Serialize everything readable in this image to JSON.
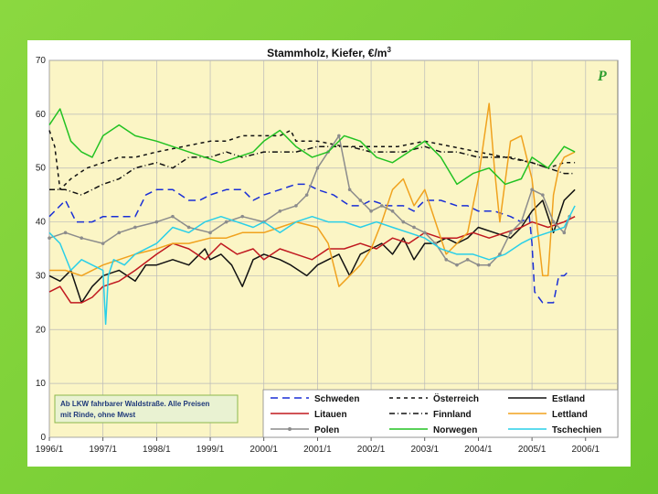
{
  "chart_data": {
    "type": "line",
    "title": "Stammholz, Kiefer, €/m",
    "title_superscript": "3",
    "xlabel": "",
    "ylabel": "",
    "ylim": [
      0,
      70
    ],
    "yticks": [
      0,
      10,
      20,
      30,
      40,
      50,
      60,
      70
    ],
    "x_tick_labels": [
      "1996/1",
      "1997/1",
      "1998/1",
      "1999/1",
      "2000/1",
      "2001/1",
      "2002/1",
      "2003/1",
      "2004/1",
      "2005/1",
      "2006/1"
    ],
    "xlim": [
      1996,
      2006.6
    ],
    "grid": true,
    "legend_position": "bottom-right",
    "note": [
      "Ab LKW fahrbarer Waldstraße. Alle Preisen",
      "mit Rinde, ohne Mwst"
    ],
    "logo": "P",
    "series": [
      {
        "name": "Schweden",
        "color": "#1a2fd6",
        "dash": "8,5",
        "x": [
          1996.0,
          1996.3,
          1996.5,
          1996.8,
          1997.0,
          1997.3,
          1997.6,
          1997.8,
          1998.0,
          1998.3,
          1998.6,
          1998.8,
          1999.0,
          1999.3,
          1999.6,
          1999.8,
          2000.0,
          2000.3,
          2000.6,
          2000.8,
          2001.0,
          2001.3,
          2001.6,
          2001.8,
          2002.0,
          2002.3,
          2002.6,
          2002.8,
          2003.0,
          2003.3,
          2003.6,
          2003.8,
          2004.0,
          2004.3,
          2004.6,
          2004.8,
          2004.95,
          2005.0,
          2005.05,
          2005.2,
          2005.4,
          2005.5,
          2005.6,
          2005.7
        ],
        "y": [
          41,
          44,
          40,
          40,
          41,
          41,
          41,
          45,
          46,
          46,
          44,
          44,
          45,
          46,
          46,
          44,
          45,
          46,
          47,
          47,
          46,
          45,
          43,
          43,
          44,
          43,
          43,
          42,
          44,
          44,
          43,
          43,
          42,
          42,
          41,
          40,
          41,
          36,
          27,
          25,
          25,
          30,
          30,
          31
        ]
      },
      {
        "name": "Österreich",
        "color": "#111111",
        "dash": "4,4",
        "x": [
          1996.0,
          1996.1,
          1996.2,
          1996.4,
          1996.7,
          1997.0,
          1997.3,
          1997.6,
          1998.0,
          1998.5,
          1999.0,
          1999.3,
          1999.6,
          2000.0,
          2000.3,
          2000.5,
          2000.6,
          2001.0,
          2001.5,
          2002.0,
          2002.5,
          2003.0,
          2003.5,
          2004.0,
          2004.5,
          2005.0,
          2005.3,
          2005.6,
          2005.8
        ],
        "y": [
          57,
          54,
          46,
          48,
          50,
          51,
          52,
          52,
          53,
          54,
          55,
          55,
          56,
          56,
          56,
          57,
          55,
          55,
          54,
          54,
          54,
          55,
          54,
          53,
          52,
          51,
          50,
          51,
          51
        ]
      },
      {
        "name": "Estland",
        "color": "#111111",
        "dash": "",
        "x": [
          1996.0,
          1996.2,
          1996.4,
          1996.6,
          1996.8,
          1997.0,
          1997.3,
          1997.6,
          1997.8,
          1998.0,
          1998.3,
          1998.6,
          1998.9,
          1999.0,
          1999.2,
          1999.4,
          1999.6,
          1999.8,
          2000.0,
          2000.3,
          2000.5,
          2000.8,
          2001.0,
          2001.2,
          2001.4,
          2001.6,
          2001.8,
          2002.0,
          2002.2,
          2002.4,
          2002.6,
          2002.8,
          2003.0,
          2003.2,
          2003.4,
          2003.6,
          2003.8,
          2004.0,
          2004.3,
          2004.6,
          2004.8,
          2005.0,
          2005.2,
          2005.4,
          2005.6,
          2005.8
        ],
        "y": [
          30,
          29,
          31,
          25,
          28,
          30,
          31,
          29,
          32,
          32,
          33,
          32,
          35,
          33,
          34,
          32,
          28,
          33,
          34,
          33,
          32,
          30,
          32,
          33,
          34,
          30,
          34,
          35,
          36,
          34,
          37,
          33,
          36,
          36,
          37,
          36,
          37,
          39,
          38,
          37,
          39,
          42,
          44,
          38,
          44,
          46
        ]
      },
      {
        "name": "Litauen",
        "color": "#c0181f",
        "dash": "",
        "x": [
          1996.0,
          1996.2,
          1996.4,
          1996.6,
          1996.8,
          1997.0,
          1997.3,
          1997.6,
          1998.0,
          1998.3,
          1998.6,
          1998.9,
          1999.2,
          1999.5,
          1999.8,
          2000.0,
          2000.3,
          2000.6,
          2000.9,
          2001.2,
          2001.5,
          2001.8,
          2002.1,
          2002.4,
          2002.7,
          2003.0,
          2003.3,
          2003.6,
          2003.9,
          2004.2,
          2004.5,
          2004.8,
          2005.0,
          2005.3,
          2005.6,
          2005.8
        ],
        "y": [
          27,
          28,
          25,
          25,
          26,
          28,
          29,
          31,
          34,
          36,
          35,
          33,
          36,
          34,
          35,
          33,
          35,
          34,
          33,
          35,
          35,
          36,
          35,
          37,
          36,
          38,
          37,
          37,
          38,
          37,
          38,
          39,
          40,
          39,
          40,
          41
        ]
      },
      {
        "name": "Finnland",
        "color": "#111111",
        "dash": "6,3,1,3",
        "x": [
          1996.0,
          1996.3,
          1996.6,
          1997.0,
          1997.3,
          1997.6,
          1998.0,
          1998.3,
          1998.6,
          1999.0,
          1999.3,
          1999.6,
          2000.0,
          2000.3,
          2000.6,
          2001.0,
          2001.3,
          2001.6,
          2002.0,
          2002.3,
          2002.6,
          2003.0,
          2003.3,
          2003.6,
          2004.0,
          2004.3,
          2004.6,
          2005.0,
          2005.3,
          2005.6,
          2005.8
        ],
        "y": [
          46,
          46,
          45,
          47,
          48,
          50,
          51,
          50,
          52,
          52,
          53,
          52,
          53,
          53,
          53,
          54,
          54,
          54,
          53,
          53,
          53,
          54,
          53,
          53,
          52,
          52,
          52,
          51,
          50,
          49,
          49
        ]
      },
      {
        "name": "Lettland",
        "color": "#f0a21e",
        "dash": "",
        "x": [
          1996.0,
          1996.3,
          1996.6,
          1997.0,
          1997.3,
          1997.6,
          1998.0,
          1998.3,
          1998.6,
          1999.0,
          1999.3,
          1999.6,
          2000.0,
          2000.3,
          2000.6,
          2001.0,
          2001.2,
          2001.4,
          2001.6,
          2001.8,
          2002.0,
          2002.2,
          2002.4,
          2002.6,
          2002.8,
          2003.0,
          2003.2,
          2003.4,
          2003.6,
          2003.8,
          2004.0,
          2004.1,
          2004.2,
          2004.3,
          2004.4,
          2004.6,
          2004.8,
          2005.0,
          2005.2,
          2005.3,
          2005.4,
          2005.5,
          2005.6,
          2005.8
        ],
        "y": [
          31,
          31,
          30,
          32,
          33,
          34,
          35,
          36,
          36,
          37,
          37,
          38,
          38,
          39,
          40,
          39,
          36,
          28,
          30,
          32,
          35,
          40,
          46,
          48,
          43,
          46,
          40,
          34,
          36,
          38,
          48,
          55,
          62,
          50,
          40,
          55,
          56,
          48,
          30,
          30,
          45,
          50,
          52,
          53
        ]
      },
      {
        "name": "Polen",
        "color": "#8c8c8c",
        "dash": "",
        "marker": true,
        "x": [
          1996.0,
          1996.3,
          1996.6,
          1997.0,
          1997.3,
          1997.6,
          1998.0,
          1998.3,
          1998.6,
          1999.0,
          1999.3,
          1999.6,
          2000.0,
          2000.3,
          2000.6,
          2000.8,
          2001.0,
          2001.2,
          2001.4,
          2001.6,
          2001.8,
          2002.0,
          2002.2,
          2002.4,
          2002.6,
          2002.8,
          2003.0,
          2003.2,
          2003.4,
          2003.6,
          2003.8,
          2004.0,
          2004.2,
          2004.4,
          2004.6,
          2004.8,
          2005.0,
          2005.2,
          2005.4,
          2005.6,
          2005.7
        ],
        "y": [
          37,
          38,
          37,
          36,
          38,
          39,
          40,
          41,
          39,
          38,
          40,
          41,
          40,
          42,
          43,
          45,
          50,
          53,
          56,
          46,
          44,
          42,
          43,
          42,
          40,
          39,
          38,
          36,
          33,
          32,
          33,
          32,
          32,
          34,
          38,
          40,
          46,
          45,
          40,
          38,
          41
        ]
      },
      {
        "name": "Norwegen",
        "color": "#22c222",
        "dash": "",
        "x": [
          1996.0,
          1996.2,
          1996.4,
          1996.6,
          1996.8,
          1997.0,
          1997.3,
          1997.6,
          1998.0,
          1998.3,
          1998.6,
          1998.9,
          1999.2,
          1999.5,
          1999.8,
          2000.0,
          2000.3,
          2000.6,
          2000.9,
          2001.2,
          2001.5,
          2001.8,
          2002.1,
          2002.4,
          2002.7,
          2003.0,
          2003.3,
          2003.6,
          2003.9,
          2004.2,
          2004.5,
          2004.8,
          2005.0,
          2005.3,
          2005.6,
          2005.8
        ],
        "y": [
          58,
          61,
          55,
          53,
          52,
          56,
          58,
          56,
          55,
          54,
          53,
          52,
          51,
          52,
          53,
          55,
          57,
          54,
          52,
          53,
          56,
          55,
          52,
          51,
          53,
          55,
          52,
          47,
          49,
          50,
          47,
          48,
          52,
          50,
          54,
          53
        ]
      },
      {
        "name": "Tschechien",
        "color": "#29cfe8",
        "dash": "",
        "x": [
          1996.0,
          1996.2,
          1996.4,
          1996.6,
          1996.8,
          1997.0,
          1997.05,
          1997.1,
          1997.2,
          1997.4,
          1997.6,
          1998.0,
          1998.3,
          1998.6,
          1998.9,
          1999.2,
          1999.5,
          1999.8,
          2000.0,
          2000.3,
          2000.6,
          2000.9,
          2001.2,
          2001.5,
          2001.8,
          2002.1,
          2002.4,
          2002.7,
          2003.0,
          2003.3,
          2003.6,
          2003.9,
          2004.2,
          2004.5,
          2004.8,
          2005.0,
          2005.3,
          2005.6,
          2005.8
        ],
        "y": [
          38,
          36,
          31,
          33,
          32,
          31,
          21,
          30,
          33,
          32,
          34,
          36,
          39,
          38,
          40,
          41,
          40,
          39,
          40,
          38,
          40,
          41,
          40,
          40,
          39,
          40,
          39,
          38,
          37,
          35,
          34,
          34,
          33,
          34,
          36,
          37,
          38,
          39,
          43
        ]
      }
    ]
  }
}
